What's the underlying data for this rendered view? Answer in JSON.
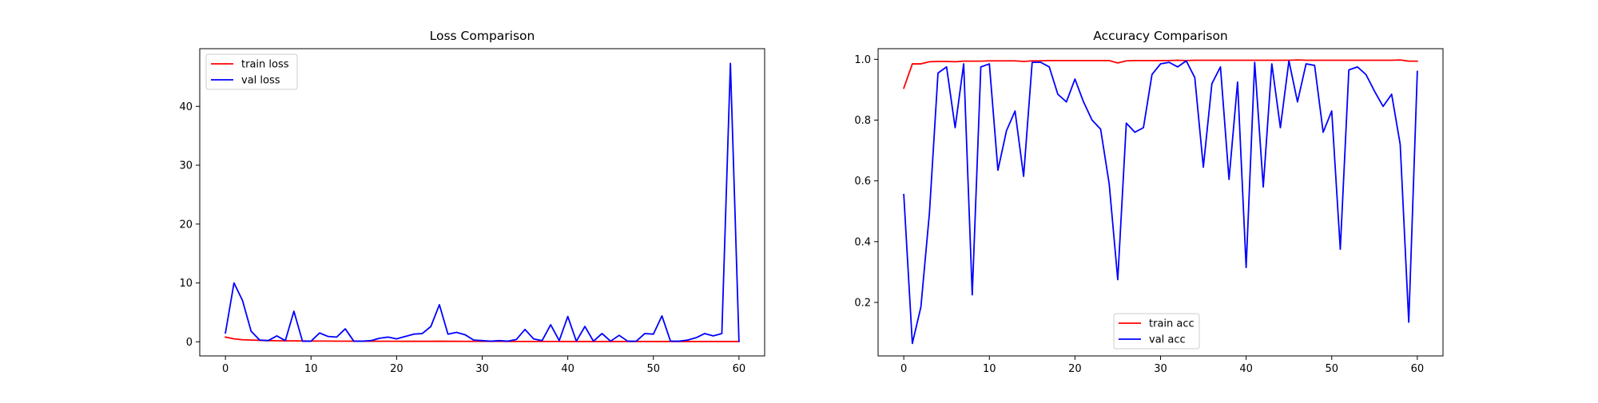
{
  "chart_data": [
    {
      "type": "line",
      "title": "Loss Comparison",
      "xlabel": "",
      "ylabel": "",
      "xlim": [
        -3,
        63
      ],
      "ylim": [
        -2.4,
        49.8
      ],
      "xticks": [
        0,
        10,
        20,
        30,
        40,
        50,
        60
      ],
      "yticks": [
        0,
        10,
        20,
        30,
        40
      ],
      "grid": false,
      "legend_position": "upper-left",
      "x": [
        0,
        1,
        2,
        3,
        4,
        5,
        6,
        7,
        8,
        9,
        10,
        11,
        12,
        13,
        14,
        15,
        16,
        17,
        18,
        19,
        20,
        21,
        22,
        23,
        24,
        25,
        26,
        27,
        28,
        29,
        30,
        31,
        32,
        33,
        34,
        35,
        36,
        37,
        38,
        39,
        40,
        41,
        42,
        43,
        44,
        45,
        46,
        47,
        48,
        49,
        50,
        51,
        52,
        53,
        54,
        55,
        56,
        57,
        58,
        59,
        60
      ],
      "series": [
        {
          "name": "train loss",
          "color": "#ff0000",
          "values": [
            0.8,
            0.5,
            0.35,
            0.3,
            0.25,
            0.2,
            0.18,
            0.16,
            0.15,
            0.14,
            0.13,
            0.12,
            0.12,
            0.11,
            0.11,
            0.1,
            0.1,
            0.1,
            0.09,
            0.09,
            0.09,
            0.08,
            0.08,
            0.08,
            0.08,
            0.1,
            0.08,
            0.08,
            0.07,
            0.07,
            0.07,
            0.07,
            0.07,
            0.06,
            0.06,
            0.06,
            0.06,
            0.06,
            0.06,
            0.06,
            0.05,
            0.05,
            0.05,
            0.05,
            0.05,
            0.05,
            0.05,
            0.05,
            0.05,
            0.05,
            0.05,
            0.05,
            0.05,
            0.05,
            0.05,
            0.05,
            0.05,
            0.05,
            0.05,
            0.05,
            0.05
          ]
        },
        {
          "name": "val loss",
          "color": "#0000ff",
          "values": [
            1.5,
            10.0,
            7.0,
            1.8,
            0.3,
            0.2,
            1.0,
            0.2,
            5.2,
            0.1,
            0.1,
            1.5,
            0.9,
            0.8,
            2.2,
            0.1,
            0.1,
            0.2,
            0.6,
            0.8,
            0.5,
            0.9,
            1.3,
            1.4,
            2.6,
            6.3,
            1.3,
            1.6,
            1.2,
            0.3,
            0.2,
            0.1,
            0.2,
            0.1,
            0.4,
            2.1,
            0.5,
            0.2,
            2.9,
            0.2,
            4.3,
            0.1,
            2.6,
            0.1,
            1.4,
            0.1,
            1.1,
            0.1,
            0.1,
            1.4,
            1.3,
            4.4,
            0.1,
            0.1,
            0.3,
            0.7,
            1.4,
            1.0,
            1.4,
            47.3,
            0.1
          ]
        }
      ]
    },
    {
      "type": "line",
      "title": "Accuracy Comparison",
      "xlabel": "",
      "ylabel": "",
      "xlim": [
        -3,
        63
      ],
      "ylim": [
        0.024,
        1.035
      ],
      "xticks": [
        0,
        10,
        20,
        30,
        40,
        50,
        60
      ],
      "yticks": [
        "0.2",
        "0.4",
        "0.6",
        "0.8",
        "1.0"
      ],
      "grid": false,
      "legend_position": "lower-center",
      "x": [
        0,
        1,
        2,
        3,
        4,
        5,
        6,
        7,
        8,
        9,
        10,
        11,
        12,
        13,
        14,
        15,
        16,
        17,
        18,
        19,
        20,
        21,
        22,
        23,
        24,
        25,
        26,
        27,
        28,
        29,
        30,
        31,
        32,
        33,
        34,
        35,
        36,
        37,
        38,
        39,
        40,
        41,
        42,
        43,
        44,
        45,
        46,
        47,
        48,
        49,
        50,
        51,
        52,
        53,
        54,
        55,
        56,
        57,
        58,
        59,
        60
      ],
      "series": [
        {
          "name": "train acc",
          "color": "#ff0000",
          "values": [
            0.905,
            0.985,
            0.985,
            0.992,
            0.993,
            0.993,
            0.992,
            0.994,
            0.994,
            0.994,
            0.995,
            0.995,
            0.995,
            0.995,
            0.993,
            0.995,
            0.995,
            0.996,
            0.996,
            0.996,
            0.996,
            0.996,
            0.996,
            0.996,
            0.996,
            0.988,
            0.995,
            0.996,
            0.996,
            0.996,
            0.996,
            0.996,
            0.997,
            0.996,
            0.997,
            0.997,
            0.997,
            0.997,
            0.997,
            0.997,
            0.997,
            0.997,
            0.997,
            0.997,
            0.997,
            0.997,
            0.998,
            0.997,
            0.997,
            0.997,
            0.997,
            0.997,
            0.997,
            0.997,
            0.997,
            0.997,
            0.997,
            0.997,
            0.998,
            0.994,
            0.994
          ]
        },
        {
          "name": "val acc",
          "color": "#0000ff",
          "values": [
            0.555,
            0.065,
            0.185,
            0.495,
            0.955,
            0.975,
            0.775,
            0.985,
            0.225,
            0.975,
            0.985,
            0.635,
            0.765,
            0.83,
            0.615,
            0.99,
            0.99,
            0.975,
            0.885,
            0.86,
            0.935,
            0.86,
            0.8,
            0.77,
            0.59,
            0.275,
            0.79,
            0.76,
            0.775,
            0.95,
            0.985,
            0.99,
            0.975,
            0.995,
            0.94,
            0.645,
            0.92,
            0.975,
            0.605,
            0.925,
            0.315,
            0.99,
            0.58,
            0.985,
            0.775,
            0.995,
            0.86,
            0.985,
            0.98,
            0.76,
            0.83,
            0.375,
            0.965,
            0.975,
            0.95,
            0.895,
            0.845,
            0.885,
            0.72,
            0.135,
            0.96
          ]
        }
      ]
    }
  ]
}
